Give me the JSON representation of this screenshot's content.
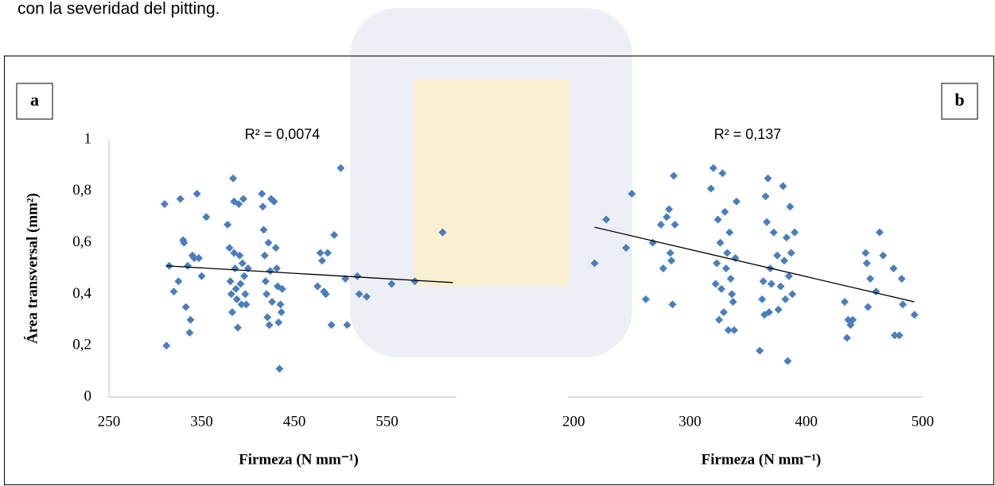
{
  "page_text": "con la severidad del pitting.",
  "chart_data": [
    {
      "type": "scatter",
      "panel_label": "a",
      "annotation": "R² = 0,0074",
      "xlabel": "Firmeza (N mm⁻¹)",
      "ylabel": "Área transversal (mm²)",
      "xlim": [
        250,
        625
      ],
      "ylim": [
        0,
        1
      ],
      "xticks": [
        250,
        350,
        450,
        550
      ],
      "yticks": [
        0,
        {
          "value": 0.2,
          "label": "0,2"
        },
        {
          "value": 0.4,
          "label": "0,4"
        },
        {
          "value": 0.6,
          "label": "0,6"
        },
        {
          "value": 0.8,
          "label": "0,8"
        },
        1
      ],
      "series": [
        {
          "color": "#4a7ebb",
          "x": [
            310,
            312,
            315,
            320,
            325,
            327,
            330,
            331,
            333,
            335,
            337,
            338,
            340,
            342,
            345,
            347,
            350,
            355,
            378,
            380,
            381,
            382,
            383,
            384,
            385,
            385,
            386,
            387,
            388,
            389,
            390,
            391,
            392,
            393,
            394,
            395,
            396,
            397,
            398,
            400,
            415,
            416,
            417,
            418,
            419,
            420,
            421,
            422,
            423,
            424,
            425,
            426,
            428,
            430,
            431,
            432,
            433,
            434,
            435,
            436,
            437,
            475,
            478,
            480,
            482,
            484,
            486,
            490,
            493,
            500,
            505,
            507,
            518,
            520,
            528,
            555,
            580,
            610
          ],
          "y": [
            0.75,
            0.2,
            0.51,
            0.41,
            0.45,
            0.77,
            0.61,
            0.6,
            0.35,
            0.51,
            0.25,
            0.3,
            0.55,
            0.54,
            0.79,
            0.54,
            0.47,
            0.7,
            0.67,
            0.58,
            0.45,
            0.4,
            0.33,
            0.85,
            0.76,
            0.56,
            0.5,
            0.42,
            0.38,
            0.27,
            0.75,
            0.55,
            0.44,
            0.36,
            0.52,
            0.77,
            0.47,
            0.4,
            0.36,
            0.5,
            0.79,
            0.74,
            0.65,
            0.55,
            0.45,
            0.4,
            0.31,
            0.6,
            0.28,
            0.49,
            0.77,
            0.37,
            0.76,
            0.58,
            0.5,
            0.43,
            0.29,
            0.11,
            0.36,
            0.33,
            0.42,
            0.43,
            0.56,
            0.53,
            0.41,
            0.4,
            0.56,
            0.28,
            0.63,
            0.89,
            0.46,
            0.28,
            0.47,
            0.4,
            0.39,
            0.44,
            0.45,
            0.64
          ]
        }
      ],
      "trendline": {
        "x": [
          312,
          621
        ],
        "y": [
          0.51,
          0.445
        ]
      }
    },
    {
      "type": "scatter",
      "panel_label": "b",
      "annotation": "R² = 0,137",
      "xlabel": "Firmeza (N mm⁻¹)",
      "xlim": [
        195,
        500
      ],
      "ylim": [
        0,
        1
      ],
      "xticks": [
        200,
        300,
        400,
        500
      ],
      "series": [
        {
          "color": "#4a7ebb",
          "x": [
            218,
            228,
            245,
            250,
            262,
            268,
            275,
            277,
            280,
            282,
            283,
            284,
            285,
            286,
            287,
            318,
            320,
            322,
            323,
            324,
            325,
            326,
            327,
            328,
            329,
            330,
            331,
            332,
            333,
            334,
            335,
            336,
            337,
            338,
            339,
            340,
            360,
            362,
            363,
            364,
            365,
            366,
            367,
            368,
            369,
            370,
            372,
            375,
            376,
            378,
            380,
            381,
            382,
            383,
            384,
            385,
            386,
            387,
            388,
            390,
            433,
            435,
            436,
            438,
            440,
            451,
            452,
            453,
            455,
            460,
            463,
            466,
            475,
            476,
            480,
            482,
            483,
            493
          ],
          "y": [
            0.52,
            0.69,
            0.58,
            0.79,
            0.38,
            0.6,
            0.67,
            0.5,
            0.7,
            0.73,
            0.56,
            0.53,
            0.36,
            0.86,
            0.67,
            0.81,
            0.89,
            0.44,
            0.52,
            0.69,
            0.3,
            0.6,
            0.42,
            0.87,
            0.33,
            0.72,
            0.5,
            0.56,
            0.26,
            0.64,
            0.46,
            0.4,
            0.37,
            0.26,
            0.54,
            0.76,
            0.18,
            0.38,
            0.45,
            0.32,
            0.78,
            0.68,
            0.85,
            0.33,
            0.5,
            0.44,
            0.64,
            0.55,
            0.34,
            0.43,
            0.82,
            0.53,
            0.38,
            0.62,
            0.14,
            0.47,
            0.74,
            0.56,
            0.4,
            0.64,
            0.37,
            0.23,
            0.3,
            0.28,
            0.3,
            0.56,
            0.52,
            0.35,
            0.46,
            0.41,
            0.64,
            0.55,
            0.5,
            0.24,
            0.24,
            0.46,
            0.36,
            0.32
          ]
        }
      ],
      "trendline": {
        "x": [
          218,
          493
        ],
        "y": [
          0.66,
          0.37
        ]
      }
    }
  ]
}
